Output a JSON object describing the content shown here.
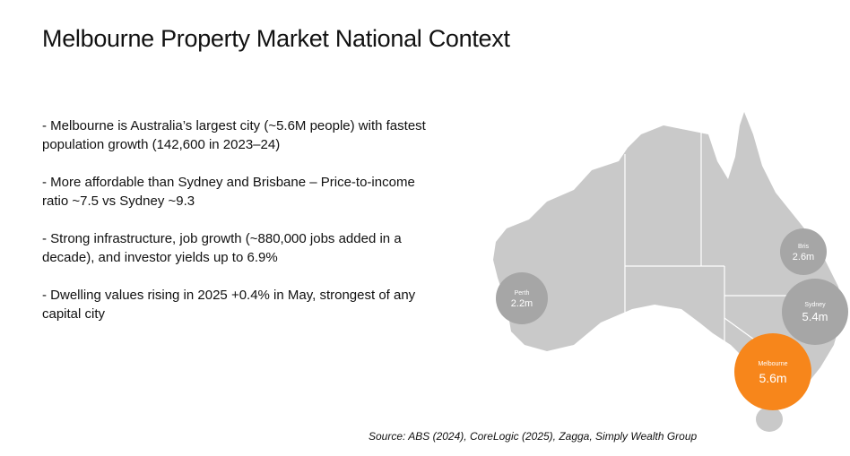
{
  "title": "Melbourne Property Market National Context",
  "bullets": [
    "- Melbourne is Australia’s largest city (~5.6M people) with fastest population growth (142,600 in 2023–24)",
    "- More affordable than Sydney and Brisbane – Price-to-income ratio ~7.5 vs Sydney ~9.3",
    "- Strong infrastructure, job growth (~880,000 jobs added in a decade), and investor yields up to 6.9%",
    "- Dwelling values rising in 2025 +0.4% in May, strongest of any capital city"
  ],
  "map": {
    "bubbles": [
      {
        "city": "Perth",
        "population": "2.2m"
      },
      {
        "city": "Bris",
        "population": "2.6m"
      },
      {
        "city": "Sydney",
        "population": "5.4m"
      },
      {
        "city": "Melbourne",
        "population": "5.6m"
      }
    ]
  },
  "source": "Source: ABS (2024), CoreLogic (2025), Zagga, Simply Wealth Group"
}
